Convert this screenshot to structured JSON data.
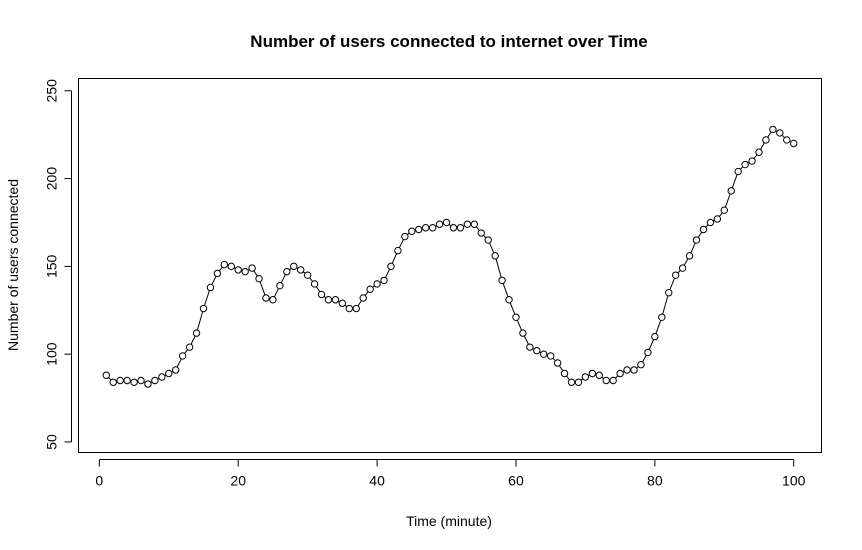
{
  "chart_data": {
    "type": "line",
    "title": "Number of users connected to internet over Time",
    "xlabel": "Time (minute)",
    "ylabel": "Number of users connected",
    "xlim": [
      -3,
      104
    ],
    "ylim": [
      44,
      257
    ],
    "x_ticks": [
      0,
      20,
      40,
      60,
      80,
      100
    ],
    "y_ticks": [
      50,
      100,
      150,
      200,
      250
    ],
    "grid": false,
    "markers": "open-circle",
    "series": [
      {
        "x": [
          1,
          2,
          3,
          4,
          5,
          6,
          7,
          8,
          9,
          10,
          11,
          12,
          13,
          14,
          15,
          16,
          17,
          18,
          19,
          20,
          21,
          22,
          23,
          24,
          25,
          26,
          27,
          28,
          29,
          30,
          31,
          32,
          33,
          34,
          35,
          36,
          37,
          38,
          39,
          40,
          41,
          42,
          43,
          44,
          45,
          46,
          47,
          48,
          49,
          50,
          51,
          52,
          53,
          54,
          55,
          56,
          57,
          58,
          59,
          60,
          61,
          62,
          63,
          64,
          65,
          66,
          67,
          68,
          69,
          70,
          71,
          72,
          73,
          74,
          75,
          76,
          77,
          78,
          79,
          80,
          81,
          82,
          83,
          84,
          85,
          86,
          87,
          88,
          89,
          90,
          91,
          92,
          93,
          94,
          95,
          96,
          97,
          98,
          99,
          100
        ],
        "values": [
          88,
          84,
          85,
          85,
          84,
          85,
          83,
          85,
          87,
          89,
          91,
          99,
          104,
          112,
          126,
          138,
          146,
          151,
          150,
          148,
          147,
          149,
          143,
          132,
          131,
          139,
          147,
          150,
          148,
          145,
          140,
          134,
          131,
          131,
          129,
          126,
          126,
          132,
          137,
          140,
          142,
          150,
          159,
          167,
          170,
          171,
          172,
          172,
          174,
          175,
          172,
          172,
          174,
          174,
          169,
          165,
          156,
          142,
          131,
          121,
          112,
          104,
          102,
          100,
          99,
          95,
          89,
          84,
          84,
          87,
          89,
          88,
          85,
          85,
          89,
          91,
          91,
          94,
          101,
          110,
          121,
          135,
          145,
          149,
          156,
          165,
          171,
          175,
          177,
          182,
          193,
          204,
          208,
          210,
          215,
          222,
          228,
          226,
          222,
          220
        ]
      }
    ]
  }
}
